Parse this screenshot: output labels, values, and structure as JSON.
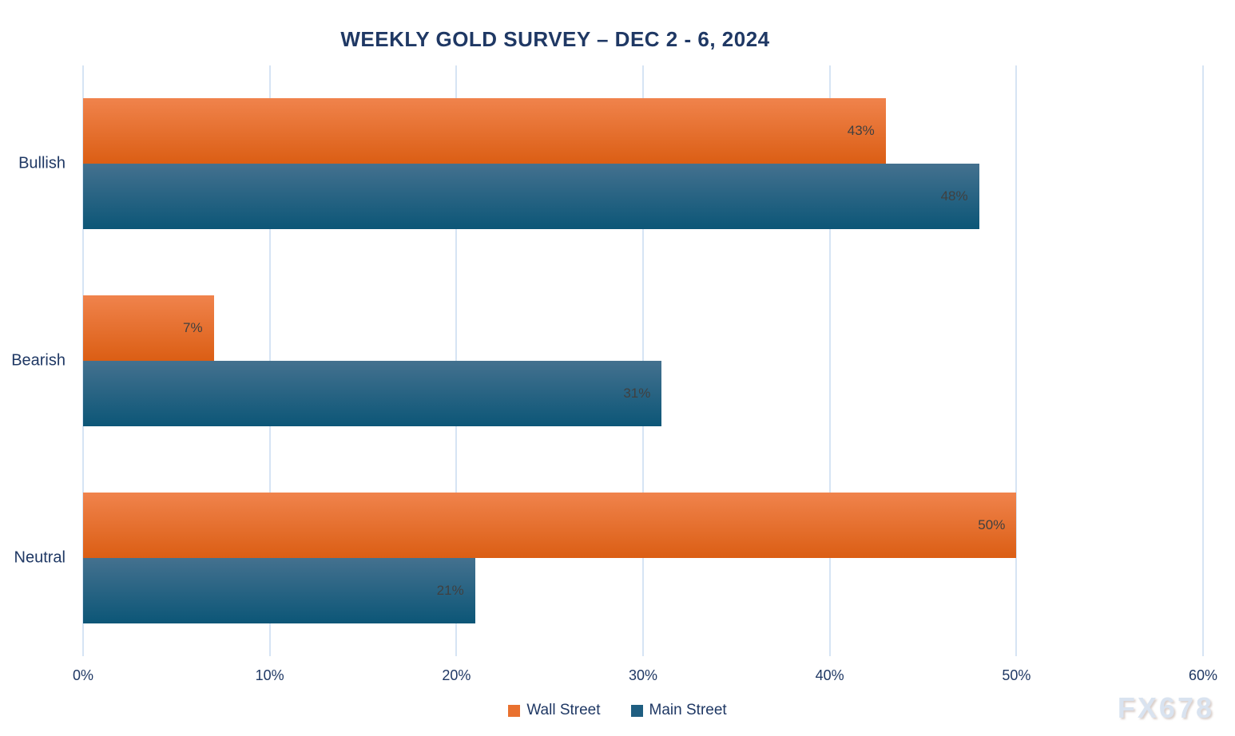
{
  "chart_data": {
    "type": "bar",
    "orientation": "horizontal",
    "title": "WEEKLY GOLD SURVEY – DEC 2 - 6, 2024",
    "categories": [
      "Bullish",
      "Bearish",
      "Neutral"
    ],
    "series": [
      {
        "name": "Wall Street",
        "values": [
          43,
          7,
          50
        ],
        "color_top": "#F0834C",
        "color_bottom": "#DB5E14",
        "legend_color": "#E9712F"
      },
      {
        "name": "Main Street",
        "values": [
          48,
          31,
          21
        ],
        "color_top": "#44718F",
        "color_bottom": "#0C5677",
        "legend_color": "#1F5E81"
      }
    ],
    "value_suffix": "%",
    "xlim": [
      0,
      60
    ],
    "x_ticks": [
      "0%",
      "10%",
      "20%",
      "30%",
      "40%",
      "50%",
      "60%"
    ],
    "grid": true,
    "legend_position": "bottom"
  },
  "watermark": "FX678",
  "colors": {
    "background": "#FFFFFF",
    "title": "#1F3864",
    "axis_label": "#1F3864",
    "data_label": "#404040",
    "gridline": "#D6E4F4",
    "watermark": "#D9E3F0"
  }
}
